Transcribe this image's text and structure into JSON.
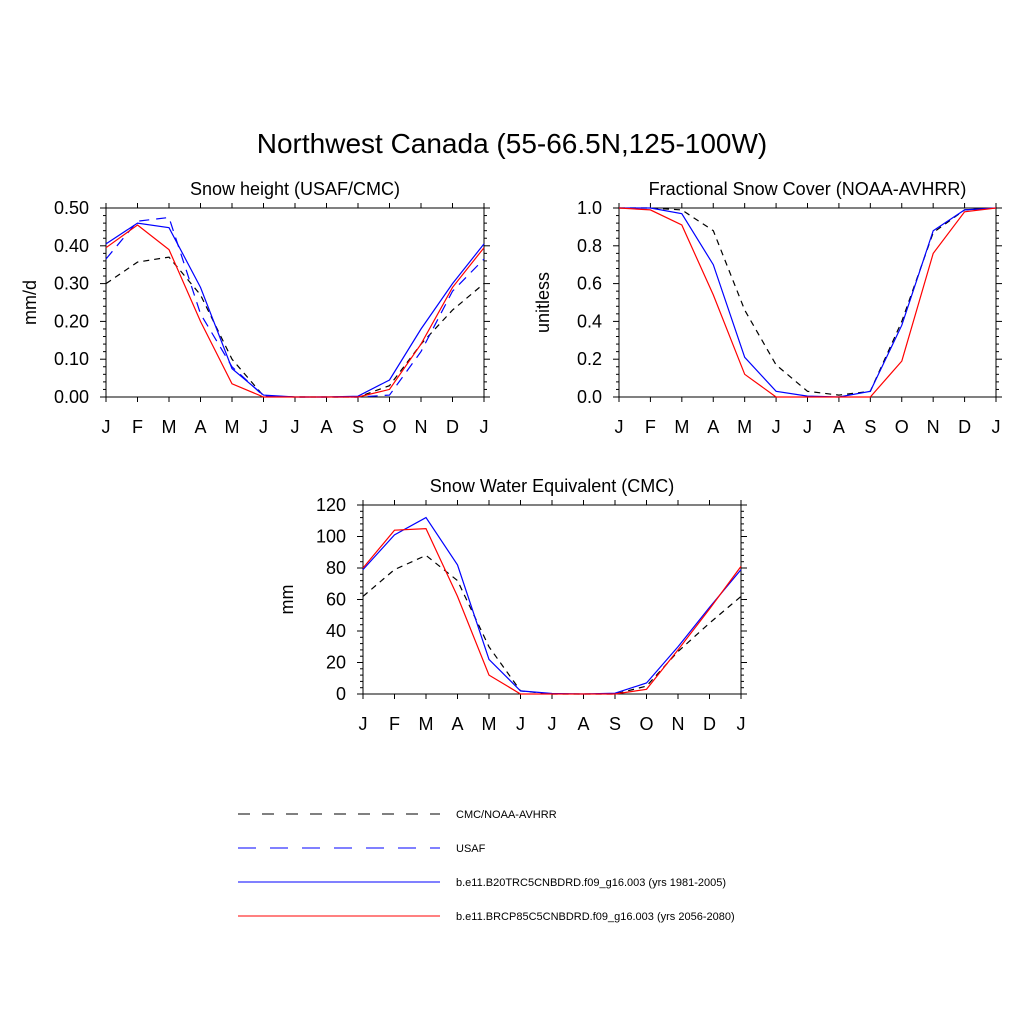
{
  "title": "Northwest Canada (55-66.5N,125-100W)",
  "series_styles": [
    {
      "name": "CMC/NOAA-AVHRR",
      "color": "#000000",
      "dash": "6,5"
    },
    {
      "name": "USAF",
      "color": "#0000ff",
      "dash": "10,7"
    },
    {
      "name": "b.e11.B20TRC5CNBDRD.f09_g16.003 (yrs 1981-2005)",
      "color": "#0000ff",
      "dash": ""
    },
    {
      "name": "b.e11.BRCP85C5CNBDRD.f09_g16.003 (yrs 2056-2080)",
      "color": "#ff0000",
      "dash": ""
    }
  ],
  "chart_data": [
    {
      "type": "line",
      "title": "Snow height (USAF/CMC)",
      "xlabel": "",
      "ylabel": "mm/d",
      "categories": [
        "J",
        "F",
        "M",
        "A",
        "M",
        "J",
        "J",
        "A",
        "S",
        "O",
        "N",
        "D",
        "J"
      ],
      "ylim": [
        0,
        0.5
      ],
      "yticks": [
        0,
        0.1,
        0.2,
        0.3,
        0.4,
        0.5
      ],
      "ytick_labels": [
        "0.00",
        "0.10",
        "0.20",
        "0.30",
        "0.40",
        "0.50"
      ],
      "series": [
        {
          "name": "CMC/NOAA-AVHRR",
          "values": [
            0.3,
            0.357,
            0.37,
            0.27,
            0.1,
            0.003,
            0.0,
            0.0,
            0.0,
            0.03,
            0.14,
            0.23,
            0.3
          ]
        },
        {
          "name": "USAF",
          "values": [
            0.365,
            0.465,
            0.475,
            0.22,
            0.08,
            0.003,
            0.0,
            0.0,
            0.0,
            0.005,
            0.12,
            0.28,
            0.365
          ]
        },
        {
          "name": "b.e11.B20TRC5CNBDRD.f09_g16.003 (yrs 1981-2005)",
          "values": [
            0.405,
            0.46,
            0.448,
            0.29,
            0.075,
            0.005,
            0.0,
            0.0,
            0.002,
            0.045,
            0.18,
            0.3,
            0.405
          ]
        },
        {
          "name": "b.e11.BRCP85C5CNBDRD.f09_g16.003 (yrs 2056-2080)",
          "values": [
            0.395,
            0.455,
            0.39,
            0.2,
            0.035,
            0.0,
            0.0,
            0.0,
            0.0,
            0.02,
            0.14,
            0.29,
            0.395
          ]
        }
      ]
    },
    {
      "type": "line",
      "title": "Fractional Snow Cover (NOAA-AVHRR)",
      "xlabel": "",
      "ylabel": "unitless",
      "categories": [
        "J",
        "F",
        "M",
        "A",
        "M",
        "J",
        "J",
        "A",
        "S",
        "O",
        "N",
        "D",
        "J"
      ],
      "ylim": [
        0,
        1.0
      ],
      "yticks": [
        0,
        0.2,
        0.4,
        0.6,
        0.8,
        1.0
      ],
      "ytick_labels": [
        "0.0",
        "0.2",
        "0.4",
        "0.6",
        "0.8",
        "1.0"
      ],
      "series": [
        {
          "name": "CMC/NOAA-AVHRR",
          "values": [
            1.0,
            1.0,
            0.99,
            0.88,
            0.46,
            0.17,
            0.03,
            0.01,
            0.03,
            0.4,
            0.87,
            0.99,
            1.0
          ]
        },
        {
          "name": "b.e11.B20TRC5CNBDRD.f09_g16.003 (yrs 1981-2005)",
          "values": [
            1.0,
            1.0,
            0.97,
            0.7,
            0.21,
            0.03,
            0.005,
            0.0,
            0.03,
            0.38,
            0.88,
            0.99,
            1.0
          ]
        },
        {
          "name": "b.e11.BRCP85C5CNBDRD.f09_g16.003 (yrs 2056-2080)",
          "values": [
            1.0,
            0.99,
            0.91,
            0.54,
            0.12,
            0.0,
            0.0,
            0.0,
            0.0,
            0.19,
            0.76,
            0.98,
            1.0
          ]
        }
      ]
    },
    {
      "type": "line",
      "title": "Snow Water Equivalent (CMC)",
      "xlabel": "",
      "ylabel": "mm",
      "categories": [
        "J",
        "F",
        "M",
        "A",
        "M",
        "J",
        "J",
        "A",
        "S",
        "O",
        "N",
        "D",
        "J"
      ],
      "ylim": [
        0,
        120
      ],
      "yticks": [
        0,
        20,
        40,
        60,
        80,
        100,
        120
      ],
      "ytick_labels": [
        "0",
        "20",
        "40",
        "60",
        "80",
        "100",
        "120"
      ],
      "series": [
        {
          "name": "CMC/NOAA-AVHRR",
          "values": [
            62,
            79,
            88,
            72,
            30,
            2,
            0,
            0,
            0,
            5,
            27,
            45,
            62
          ]
        },
        {
          "name": "b.e11.B20TRC5CNBDRD.f09_g16.003 (yrs 1981-2005)",
          "values": [
            79,
            101,
            112,
            82,
            22,
            2,
            0.3,
            0,
            0.5,
            7,
            30,
            55,
            79
          ]
        },
        {
          "name": "b.e11.BRCP85C5CNBDRD.f09_g16.003 (yrs 2056-2080)",
          "values": [
            80,
            104,
            105,
            62,
            12,
            0,
            0,
            0,
            0,
            3,
            28,
            54,
            81
          ]
        }
      ]
    }
  ]
}
